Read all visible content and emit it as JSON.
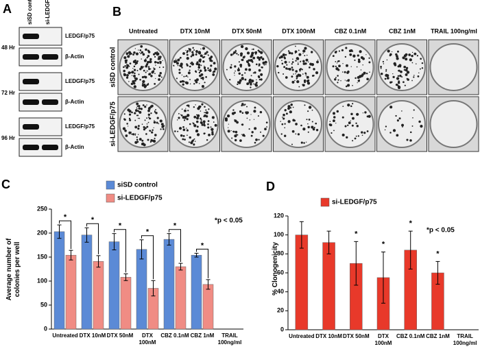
{
  "panel_a": {
    "letter": "A",
    "columns": [
      "siSD control",
      "si-LEDGF/p75"
    ],
    "time_points": [
      "48 Hr",
      "72 Hr",
      "96 Hr"
    ],
    "bands": [
      "LEDGF/p75",
      "β-Actin"
    ]
  },
  "panel_b": {
    "letter": "B",
    "columns": [
      "Untreated",
      "DTX 10nM",
      "DTX 50nM",
      "DTX 100nM",
      "CBZ 0.1nM",
      "CBZ 1nM",
      "TRAIL 100ng/ml"
    ],
    "rows": [
      "siSD control",
      "si-LEDGF/p75"
    ]
  },
  "chart_data": [
    {
      "type": "bar",
      "letter": "C",
      "ylabel": "Average number of colonies per well",
      "note": "*p < 0.05",
      "significance_marker": "*",
      "significant_categories": [
        0,
        1,
        2,
        3,
        4,
        5
      ],
      "brackets": true,
      "categories": [
        "Untreated",
        "DTX 10nM",
        "DTX 50nM",
        "DTX 100nM",
        "CBZ 0.1nM",
        "CBZ 1nM",
        "TRAIL 100ng/ml"
      ],
      "series": [
        {
          "name": "siSD control",
          "color": "#5b8ad6",
          "values": [
            203,
            196,
            182,
            166,
            187,
            154,
            null
          ],
          "errors": [
            14,
            15,
            17,
            20,
            12,
            4,
            null
          ]
        },
        {
          "name": "si-LEDGF/p75",
          "color": "#f08c84",
          "values": [
            154,
            141,
            108,
            85,
            130,
            93,
            null
          ],
          "errors": [
            10,
            12,
            7,
            16,
            7,
            10,
            null
          ]
        }
      ],
      "ylim": [
        0,
        250
      ],
      "yticks": [
        0,
        50,
        100,
        150,
        200,
        250
      ]
    },
    {
      "type": "bar",
      "letter": "D",
      "ylabel": "% Clonogenicity",
      "note": "*p < 0.05",
      "significance_marker": "*",
      "significant_categories": [
        2,
        3,
        4,
        5
      ],
      "brackets": false,
      "categories": [
        "Untreated",
        "DTX 10nM",
        "DTX 50nM",
        "DTX 100nM",
        "CBZ 0.1nM",
        "CBZ 1nM",
        "TRAIL 100ng/ml"
      ],
      "series": [
        {
          "name": "si-LEDGF/p75",
          "color": "#e8392a",
          "values": [
            100,
            92,
            70,
            55,
            84,
            60,
            null
          ],
          "errors": [
            14,
            12,
            23,
            27,
            20,
            12,
            null
          ]
        }
      ],
      "ylim": [
        0,
        120
      ],
      "yticks": [
        0,
        20,
        40,
        60,
        80,
        100,
        120
      ]
    }
  ]
}
